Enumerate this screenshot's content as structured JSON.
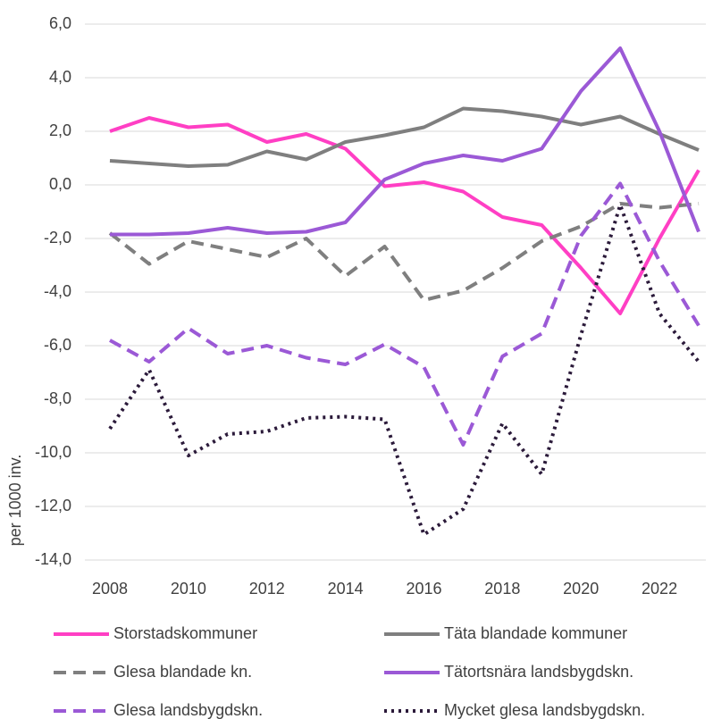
{
  "chart_data": {
    "type": "line",
    "y_label": "per 1000 inv.",
    "x": [
      2008,
      2009,
      2010,
      2011,
      2012,
      2013,
      2014,
      2015,
      2016,
      2017,
      2018,
      2019,
      2020,
      2021,
      2022,
      2023
    ],
    "xlim": [
      2008,
      2023
    ],
    "xticks": [
      2008,
      2010,
      2012,
      2014,
      2016,
      2018,
      2020,
      2022
    ],
    "ylim": [
      -14,
      6
    ],
    "yticks": [
      {
        "value": -14,
        "label": "-14,0"
      },
      {
        "value": -12,
        "label": "-12,0"
      },
      {
        "value": -10,
        "label": "-10,0"
      },
      {
        "value": -8,
        "label": "-8,0"
      },
      {
        "value": -6,
        "label": "-6,0"
      },
      {
        "value": -4,
        "label": "-4,0"
      },
      {
        "value": -2,
        "label": "-2,0"
      },
      {
        "value": 0,
        "label": "0,0"
      },
      {
        "value": 2,
        "label": "2,0"
      },
      {
        "value": 4,
        "label": "4,0"
      },
      {
        "value": 6,
        "label": "6,0"
      }
    ],
    "grid": true,
    "legend": "bottom",
    "series": [
      {
        "name": "Storstadskommuner",
        "color": "#ff3fc4",
        "dash": "solid",
        "values": [
          2.0,
          2.5,
          2.15,
          2.25,
          1.6,
          1.9,
          1.35,
          -0.05,
          0.1,
          -0.25,
          -1.2,
          -1.5,
          -3.1,
          -4.8,
          -2.0,
          0.55
        ]
      },
      {
        "name": "Täta blandade kommuner",
        "color": "#7f7f7f",
        "dash": "solid",
        "values": [
          0.9,
          0.8,
          0.7,
          0.75,
          1.25,
          0.95,
          1.6,
          1.85,
          2.15,
          2.85,
          2.75,
          2.55,
          2.25,
          2.55,
          1.9,
          1.3
        ]
      },
      {
        "name": "Glesa blandade kn.",
        "color": "#7f7f7f",
        "dash": "dashed",
        "values": [
          -1.8,
          -2.95,
          -2.1,
          -2.4,
          -2.7,
          -2.0,
          -3.4,
          -2.3,
          -4.3,
          -3.95,
          -3.1,
          -2.1,
          -1.55,
          -0.7,
          -0.85,
          -0.7
        ]
      },
      {
        "name": "Tätortsnära landsbygdskn.",
        "color": "#9b59d6",
        "dash": "solid",
        "values": [
          -1.85,
          -1.85,
          -1.8,
          -1.6,
          -1.8,
          -1.75,
          -1.4,
          0.2,
          0.8,
          1.1,
          0.9,
          1.35,
          3.5,
          5.1,
          2.0,
          -1.75
        ]
      },
      {
        "name": "Glesa landsbygdskn.",
        "color": "#9b59d6",
        "dash": "dashed",
        "values": [
          -5.8,
          -6.6,
          -5.35,
          -6.3,
          -6.0,
          -6.45,
          -6.7,
          -5.95,
          -6.8,
          -9.7,
          -6.4,
          -5.55,
          -1.9,
          0.05,
          -2.85,
          -5.25
        ]
      },
      {
        "name": "Mycket glesa landsbygdskn.",
        "color": "#2b1a3a",
        "dash": "dotted",
        "values": [
          -9.1,
          -6.9,
          -10.1,
          -9.3,
          -9.2,
          -8.7,
          -8.65,
          -8.75,
          -13.05,
          -12.1,
          -8.9,
          -10.8,
          -5.6,
          -0.75,
          -4.8,
          -6.6
        ]
      }
    ]
  }
}
